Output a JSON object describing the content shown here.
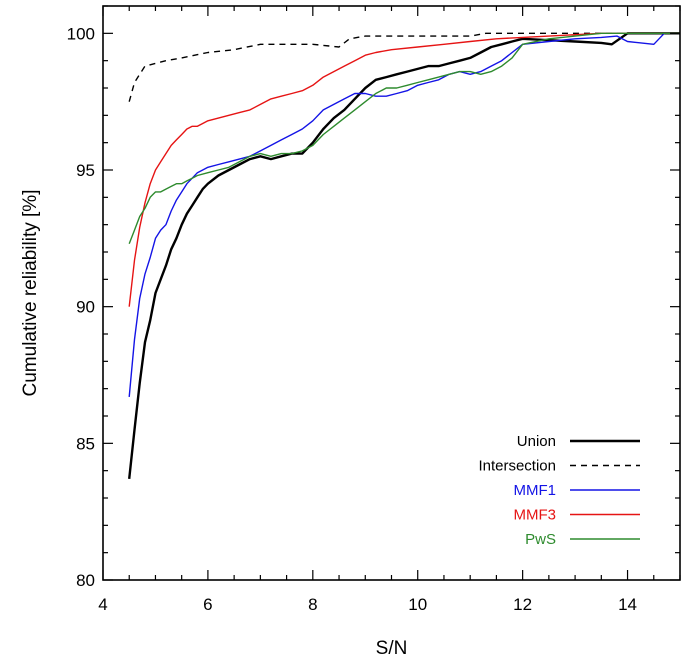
{
  "chart_data": {
    "type": "line",
    "xlabel": "S/N",
    "ylabel": "Cumulative reliability [%]",
    "xlim": [
      4,
      15
    ],
    "ylim": [
      80,
      101
    ],
    "xticks": [
      4,
      6,
      8,
      10,
      12,
      14
    ],
    "yticks": [
      80,
      85,
      90,
      95,
      100
    ],
    "grid": false,
    "legend_position": "bottom-right",
    "series": [
      {
        "name": "Union",
        "color": "#000000",
        "style": "solid",
        "width": 2.4,
        "x": [
          4.5,
          4.6,
          4.7,
          4.8,
          4.9,
          5.0,
          5.1,
          5.2,
          5.3,
          5.4,
          5.5,
          5.6,
          5.7,
          5.8,
          5.9,
          6.0,
          6.2,
          6.4,
          6.6,
          6.8,
          7.0,
          7.2,
          7.4,
          7.6,
          7.8,
          8.0,
          8.2,
          8.4,
          8.6,
          8.8,
          9.0,
          9.2,
          9.4,
          9.6,
          9.8,
          10.0,
          10.2,
          10.4,
          10.6,
          10.8,
          11.0,
          11.2,
          11.4,
          11.6,
          11.8,
          12.0,
          12.5,
          13.0,
          13.5,
          13.7,
          14.0,
          14.5,
          15.0
        ],
        "y": [
          83.7,
          85.5,
          87.2,
          88.7,
          89.5,
          90.5,
          91.0,
          91.5,
          92.1,
          92.5,
          93.0,
          93.4,
          93.7,
          94.0,
          94.3,
          94.5,
          94.8,
          95.0,
          95.2,
          95.4,
          95.5,
          95.4,
          95.5,
          95.6,
          95.6,
          96.0,
          96.5,
          96.9,
          97.2,
          97.6,
          98.0,
          98.3,
          98.4,
          98.5,
          98.6,
          98.7,
          98.8,
          98.8,
          98.9,
          99.0,
          99.1,
          99.3,
          99.5,
          99.6,
          99.7,
          99.8,
          99.75,
          99.7,
          99.65,
          99.6,
          100.0,
          100.0,
          100.0
        ]
      },
      {
        "name": "Intersection",
        "color": "#000000",
        "style": "dashed",
        "width": 1.4,
        "x": [
          4.5,
          4.6,
          4.7,
          4.8,
          4.9,
          5.0,
          5.2,
          5.5,
          6.0,
          6.5,
          7.0,
          7.5,
          8.0,
          8.5,
          8.7,
          9.0,
          9.5,
          10.0,
          11.0,
          11.3,
          12.0,
          13.0,
          14.0,
          15.0
        ],
        "y": [
          97.5,
          98.2,
          98.5,
          98.8,
          98.85,
          98.9,
          99.0,
          99.1,
          99.3,
          99.4,
          99.6,
          99.6,
          99.6,
          99.5,
          99.8,
          99.9,
          99.9,
          99.9,
          99.9,
          100.0,
          100.0,
          100.0,
          100.0,
          100.0
        ]
      },
      {
        "name": "MMF1",
        "color": "#1414e6",
        "style": "solid",
        "width": 1.4,
        "x": [
          4.5,
          4.6,
          4.7,
          4.8,
          4.9,
          5.0,
          5.1,
          5.2,
          5.3,
          5.4,
          5.5,
          5.6,
          5.7,
          5.8,
          5.9,
          6.0,
          6.2,
          6.4,
          6.6,
          6.8,
          7.0,
          7.2,
          7.4,
          7.6,
          7.8,
          8.0,
          8.2,
          8.4,
          8.6,
          8.8,
          9.0,
          9.2,
          9.4,
          9.6,
          9.8,
          10.0,
          10.2,
          10.4,
          10.6,
          10.8,
          11.0,
          11.2,
          11.4,
          11.6,
          11.8,
          12.0,
          12.5,
          13.0,
          13.5,
          13.8,
          14.0,
          14.5,
          14.7,
          15.0
        ],
        "y": [
          86.7,
          88.8,
          90.3,
          91.2,
          91.8,
          92.5,
          92.8,
          93.0,
          93.5,
          93.9,
          94.2,
          94.5,
          94.7,
          94.9,
          95.0,
          95.1,
          95.2,
          95.3,
          95.4,
          95.5,
          95.7,
          95.9,
          96.1,
          96.3,
          96.5,
          96.8,
          97.2,
          97.4,
          97.6,
          97.8,
          97.8,
          97.7,
          97.7,
          97.8,
          97.9,
          98.1,
          98.2,
          98.3,
          98.5,
          98.6,
          98.5,
          98.6,
          98.8,
          99.0,
          99.3,
          99.6,
          99.7,
          99.8,
          99.85,
          99.9,
          99.7,
          99.6,
          100.0,
          100.0
        ]
      },
      {
        "name": "MMF3",
        "color": "#e61414",
        "style": "solid",
        "width": 1.4,
        "x": [
          4.5,
          4.6,
          4.7,
          4.8,
          4.9,
          5.0,
          5.1,
          5.2,
          5.3,
          5.4,
          5.5,
          5.6,
          5.7,
          5.8,
          5.9,
          6.0,
          6.2,
          6.4,
          6.6,
          6.8,
          7.0,
          7.2,
          7.4,
          7.6,
          7.8,
          8.0,
          8.2,
          8.4,
          8.6,
          8.8,
          9.0,
          9.2,
          9.5,
          10.0,
          10.5,
          11.0,
          11.5,
          12.0,
          12.5,
          13.0,
          13.5,
          14.0,
          15.0
        ],
        "y": [
          90.0,
          91.7,
          92.9,
          93.8,
          94.5,
          95.0,
          95.3,
          95.6,
          95.9,
          96.1,
          96.3,
          96.5,
          96.6,
          96.6,
          96.7,
          96.8,
          96.9,
          97.0,
          97.1,
          97.2,
          97.4,
          97.6,
          97.7,
          97.8,
          97.9,
          98.1,
          98.4,
          98.6,
          98.8,
          99.0,
          99.2,
          99.3,
          99.4,
          99.5,
          99.6,
          99.7,
          99.8,
          99.85,
          99.9,
          99.95,
          100.0,
          100.0,
          100.0
        ]
      },
      {
        "name": "PwS",
        "color": "#2e8b2e",
        "style": "solid",
        "width": 1.4,
        "x": [
          4.5,
          4.6,
          4.7,
          4.8,
          4.9,
          5.0,
          5.1,
          5.2,
          5.3,
          5.4,
          5.5,
          5.6,
          5.7,
          5.8,
          6.0,
          6.2,
          6.4,
          6.6,
          6.8,
          7.0,
          7.2,
          7.4,
          7.6,
          7.8,
          8.0,
          8.2,
          8.4,
          8.6,
          8.8,
          9.0,
          9.2,
          9.4,
          9.6,
          9.8,
          10.0,
          10.2,
          10.4,
          10.6,
          10.8,
          11.0,
          11.2,
          11.4,
          11.6,
          11.8,
          12.0,
          12.5,
          13.0,
          13.5,
          14.0,
          15.0
        ],
        "y": [
          92.3,
          92.8,
          93.3,
          93.6,
          94.0,
          94.2,
          94.2,
          94.3,
          94.4,
          94.5,
          94.5,
          94.6,
          94.7,
          94.8,
          94.9,
          95.0,
          95.1,
          95.3,
          95.5,
          95.6,
          95.5,
          95.6,
          95.6,
          95.7,
          95.9,
          96.3,
          96.6,
          96.9,
          97.2,
          97.5,
          97.8,
          98.0,
          98.0,
          98.1,
          98.2,
          98.3,
          98.4,
          98.5,
          98.6,
          98.6,
          98.5,
          98.6,
          98.8,
          99.1,
          99.6,
          99.8,
          99.9,
          100.0,
          100.0,
          100.0
        ]
      }
    ]
  }
}
